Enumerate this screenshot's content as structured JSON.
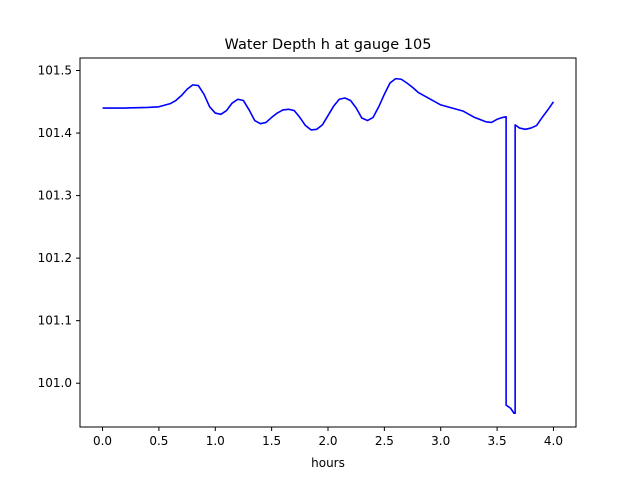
{
  "chart_data": {
    "type": "line",
    "title": "Water Depth h at gauge 105",
    "xlabel": "hours",
    "ylabel": "",
    "xlim": [
      -0.2,
      4.2
    ],
    "ylim": [
      100.93,
      101.52
    ],
    "xticks": [
      0.0,
      0.5,
      1.0,
      1.5,
      2.0,
      2.5,
      3.0,
      3.5,
      4.0
    ],
    "xtick_labels": [
      "0.0",
      "0.5",
      "1.0",
      "1.5",
      "2.0",
      "2.5",
      "3.0",
      "3.5",
      "4.0"
    ],
    "yticks": [
      101.0,
      101.1,
      101.2,
      101.3,
      101.4,
      101.5
    ],
    "ytick_labels": [
      "101.0",
      "101.1",
      "101.2",
      "101.3",
      "101.4",
      "101.5"
    ],
    "grid": false,
    "legend": "none",
    "series": [
      {
        "color": "#0000ff",
        "x": [
          0.0,
          0.2,
          0.4,
          0.5,
          0.6,
          0.65,
          0.7,
          0.75,
          0.8,
          0.85,
          0.9,
          0.95,
          1.0,
          1.05,
          1.1,
          1.15,
          1.2,
          1.25,
          1.3,
          1.35,
          1.4,
          1.45,
          1.5,
          1.55,
          1.6,
          1.65,
          1.7,
          1.75,
          1.8,
          1.85,
          1.9,
          1.95,
          2.0,
          2.05,
          2.1,
          2.15,
          2.2,
          2.25,
          2.3,
          2.35,
          2.4,
          2.45,
          2.5,
          2.55,
          2.6,
          2.65,
          2.7,
          2.75,
          2.8,
          2.9,
          3.0,
          3.1,
          3.2,
          3.3,
          3.4,
          3.45,
          3.5,
          3.55,
          3.58,
          3.58,
          3.62,
          3.65,
          3.66,
          3.66,
          3.7,
          3.75,
          3.8,
          3.85,
          3.9,
          3.95,
          4.0
        ],
        "y": [
          101.44,
          101.44,
          101.441,
          101.442,
          101.447,
          101.452,
          101.46,
          101.47,
          101.477,
          101.476,
          101.462,
          101.442,
          101.432,
          101.43,
          101.436,
          101.448,
          101.454,
          101.452,
          101.437,
          101.42,
          101.415,
          101.417,
          101.425,
          101.432,
          101.437,
          101.438,
          101.436,
          101.425,
          101.412,
          101.405,
          101.406,
          101.413,
          101.428,
          101.443,
          101.454,
          101.456,
          101.452,
          101.44,
          101.424,
          101.42,
          101.425,
          101.442,
          101.462,
          101.48,
          101.487,
          101.486,
          101.48,
          101.473,
          101.465,
          101.455,
          101.445,
          101.44,
          101.435,
          101.425,
          101.418,
          101.417,
          101.422,
          101.425,
          101.426,
          100.965,
          100.96,
          100.952,
          100.952,
          101.413,
          101.408,
          101.406,
          101.408,
          101.412,
          101.425,
          101.437,
          101.45
        ]
      }
    ]
  }
}
